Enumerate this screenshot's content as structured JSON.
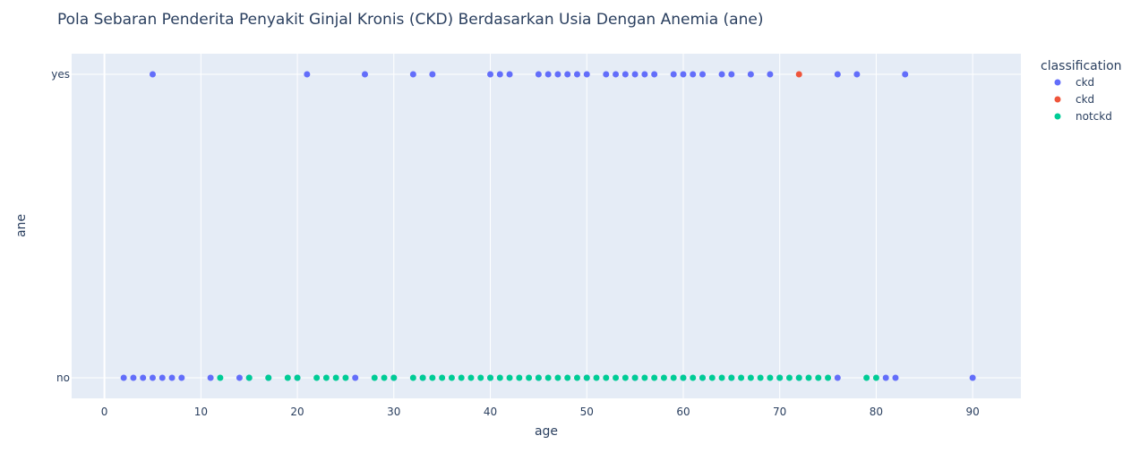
{
  "chart_data": {
    "type": "scatter",
    "title": "Pola Sebaran Penderita Penyakit Ginjal Kronis (CKD) Berdasarkan Usia Dengan Anemia (ane)",
    "xlabel": "age",
    "ylabel": "ane",
    "xlim": [
      -3.4,
      95
    ],
    "x_ticks": [
      0,
      10,
      20,
      30,
      40,
      50,
      60,
      70,
      80,
      90
    ],
    "y_categories": [
      "no",
      "yes"
    ],
    "grid": true,
    "legend_title": "classification",
    "legend_position": "top-right",
    "plot_bg": "#e5ecf6",
    "series": [
      {
        "name": "ckd",
        "color": "#636efa",
        "x": [
          5,
          21,
          27,
          32,
          34,
          40,
          41,
          42,
          45,
          46,
          47,
          48,
          49,
          50,
          52,
          53,
          54,
          55,
          56,
          57,
          59,
          60,
          61,
          62,
          64,
          65,
          67,
          69,
          76,
          78,
          83,
          2,
          3,
          4,
          5,
          6,
          7,
          8,
          11,
          14,
          15,
          17,
          20,
          26,
          30,
          33,
          40,
          45,
          50,
          55,
          60,
          62,
          65,
          70,
          72,
          76,
          81,
          82,
          90
        ],
        "y": [
          "yes",
          "yes",
          "yes",
          "yes",
          "yes",
          "yes",
          "yes",
          "yes",
          "yes",
          "yes",
          "yes",
          "yes",
          "yes",
          "yes",
          "yes",
          "yes",
          "yes",
          "yes",
          "yes",
          "yes",
          "yes",
          "yes",
          "yes",
          "yes",
          "yes",
          "yes",
          "yes",
          "yes",
          "yes",
          "yes",
          "yes",
          "no",
          "no",
          "no",
          "no",
          "no",
          "no",
          "no",
          "no",
          "no",
          "no",
          "no",
          "no",
          "no",
          "no",
          "no",
          "no",
          "no",
          "no",
          "no",
          "no",
          "no",
          "no",
          "no",
          "no",
          "no",
          "no",
          "no",
          "no"
        ]
      },
      {
        "name": "ckd",
        "color": "#ef553b",
        "x": [
          72
        ],
        "y": [
          "yes"
        ]
      },
      {
        "name": "notckd",
        "color": "#00cc96",
        "x": [
          12,
          15,
          17,
          19,
          20,
          22,
          23,
          24,
          25,
          28,
          29,
          30,
          32,
          33,
          34,
          35,
          36,
          37,
          38,
          39,
          40,
          41,
          42,
          43,
          44,
          45,
          46,
          47,
          48,
          49,
          50,
          51,
          52,
          53,
          54,
          55,
          56,
          57,
          58,
          59,
          60,
          61,
          62,
          63,
          64,
          65,
          66,
          67,
          68,
          69,
          70,
          71,
          72,
          73,
          74,
          75,
          79,
          80
        ],
        "y": [
          "no",
          "no",
          "no",
          "no",
          "no",
          "no",
          "no",
          "no",
          "no",
          "no",
          "no",
          "no",
          "no",
          "no",
          "no",
          "no",
          "no",
          "no",
          "no",
          "no",
          "no",
          "no",
          "no",
          "no",
          "no",
          "no",
          "no",
          "no",
          "no",
          "no",
          "no",
          "no",
          "no",
          "no",
          "no",
          "no",
          "no",
          "no",
          "no",
          "no",
          "no",
          "no",
          "no",
          "no",
          "no",
          "no",
          "no",
          "no",
          "no",
          "no",
          "no",
          "no",
          "no",
          "no",
          "no",
          "no",
          "no",
          "no"
        ]
      }
    ]
  }
}
